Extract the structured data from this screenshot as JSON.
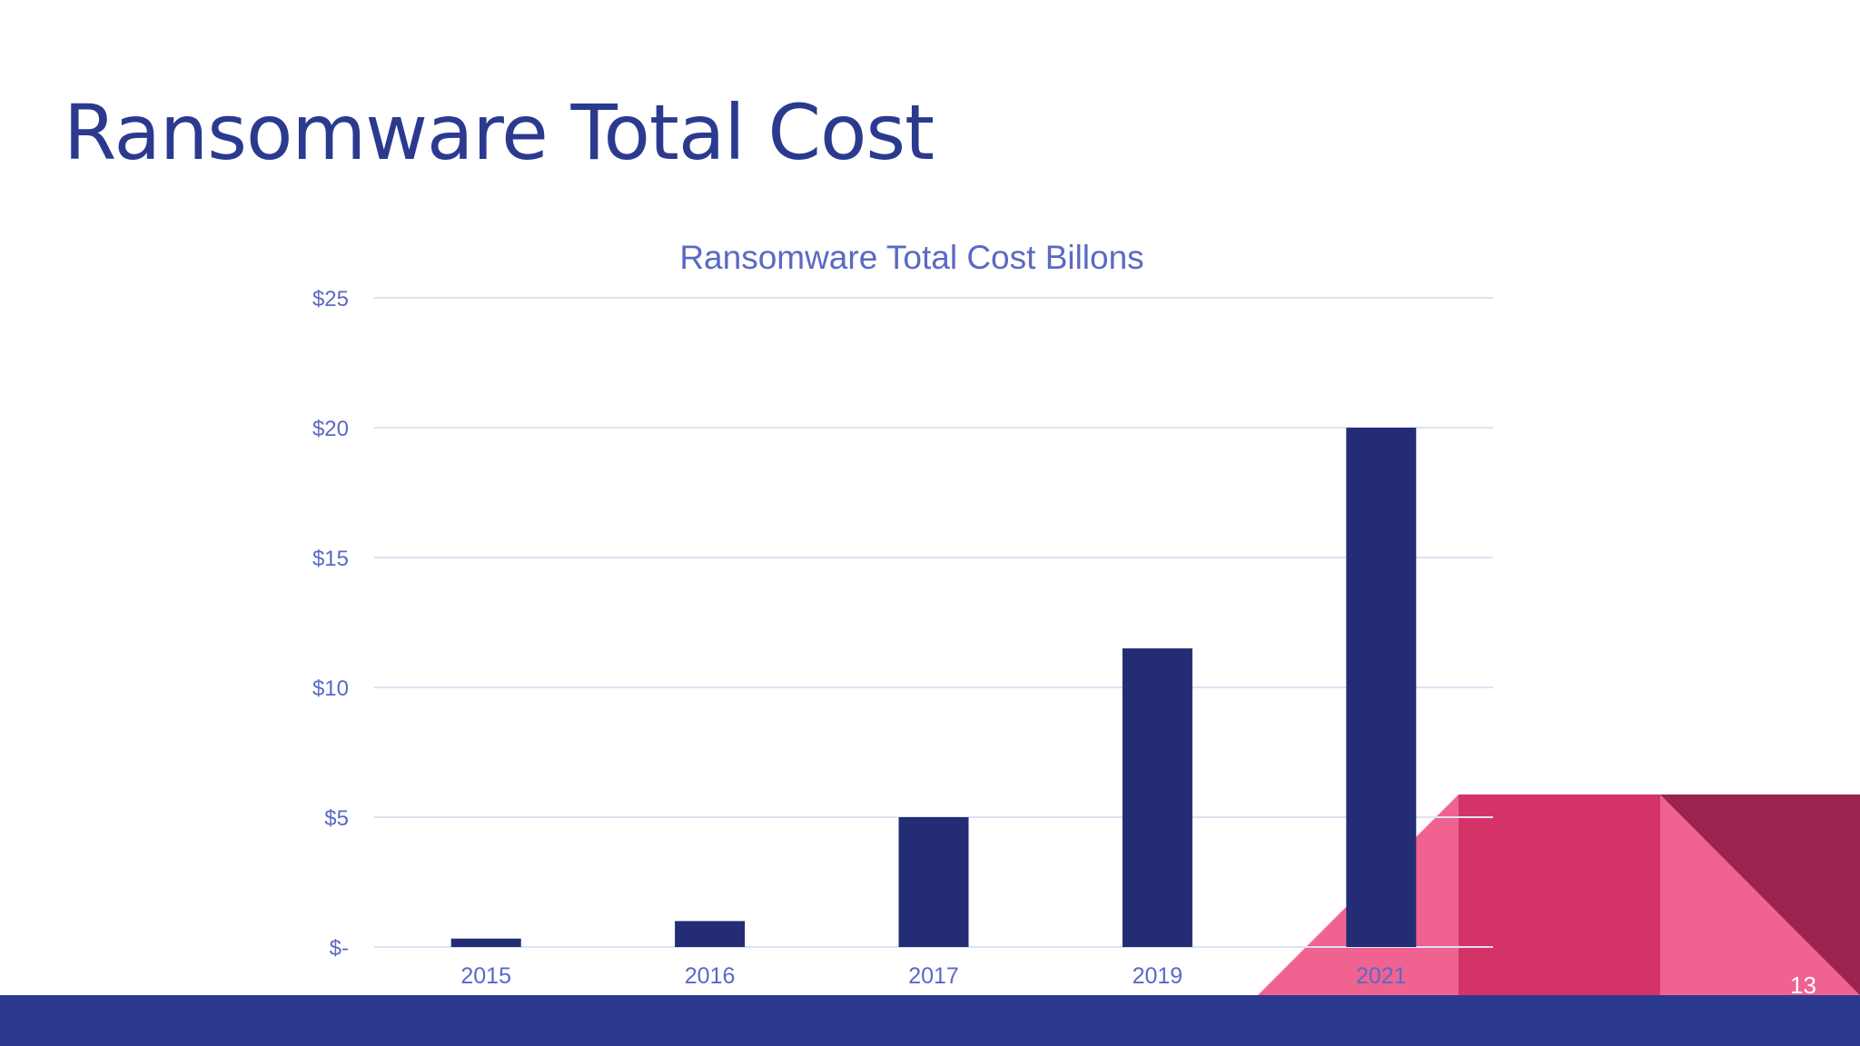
{
  "slide": {
    "title": "Ransomware Total Cost",
    "page_number": "13"
  },
  "colors": {
    "title": "#2b3a8f",
    "chart_text": "#5a69c4",
    "bar": "#232c74",
    "gridline": "#dfe1f2",
    "footer": "#2b3a8f",
    "deco_light_pink": "#f06290",
    "deco_pink": "#d43367",
    "deco_dark": "#9b2350"
  },
  "chart_data": {
    "type": "bar",
    "title": "Ransomware Total Cost Billons",
    "categories": [
      "2015",
      "2016",
      "2017",
      "2019",
      "2021"
    ],
    "values": [
      0.325,
      1,
      5,
      11.5,
      20
    ],
    "ylim": [
      0,
      25
    ],
    "yticks": [
      0,
      5,
      10,
      15,
      20,
      25
    ],
    "ytick_labels": [
      "$-",
      "$5",
      "$10",
      "$15",
      "$20",
      "$25"
    ],
    "grid": true,
    "xlabel": "",
    "ylabel": ""
  }
}
